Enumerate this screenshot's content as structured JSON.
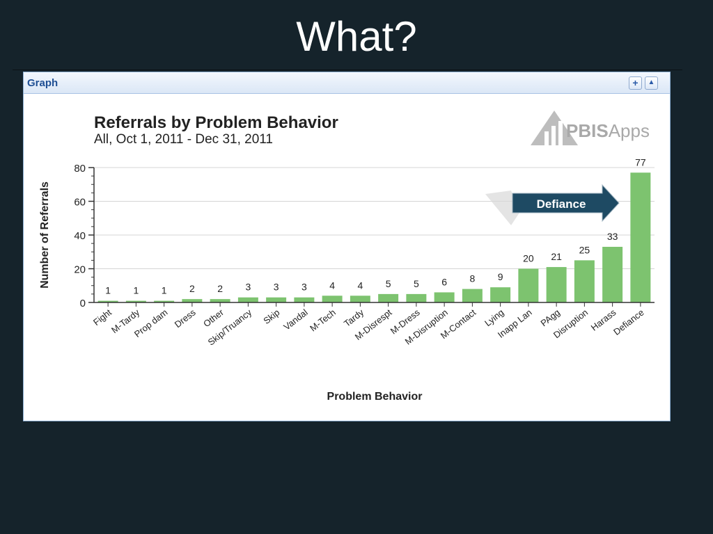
{
  "slide": {
    "title": "What?"
  },
  "panel": {
    "title": "Graph",
    "expand_label": "+",
    "collapse_label": "▲",
    "logo_text_bold": "PBIS",
    "logo_text_light": "Apps"
  },
  "callout": {
    "label": "Defiance",
    "color": "#1e4a63"
  },
  "colors": {
    "bar": "#7dc36f",
    "background": "#15232b"
  },
  "chart_data": {
    "type": "bar",
    "title": "Referrals by Problem Behavior",
    "subtitle": "All, Oct 1, 2011 - Dec 31, 2011",
    "xlabel": "Problem Behavior",
    "ylabel": "Number of Referrals",
    "ylim": [
      0,
      80
    ],
    "yticks": [
      0,
      20,
      40,
      60,
      80
    ],
    "grid": true,
    "categories": [
      "Fight",
      "M-Tardy",
      "Prop dam",
      "Dress",
      "Other",
      "Skip/Truancy",
      "Skip",
      "Vandal",
      "M-Tech",
      "Tardy",
      "M-Disrespt",
      "M-Dress",
      "M-Disruption",
      "M-Contact",
      "Lying",
      "Inapp Lan",
      "PAgg",
      "Disruption",
      "Harass",
      "Defiance"
    ],
    "values": [
      1,
      1,
      1,
      2,
      2,
      3,
      3,
      3,
      4,
      4,
      5,
      5,
      6,
      8,
      9,
      20,
      21,
      25,
      33,
      77
    ]
  }
}
